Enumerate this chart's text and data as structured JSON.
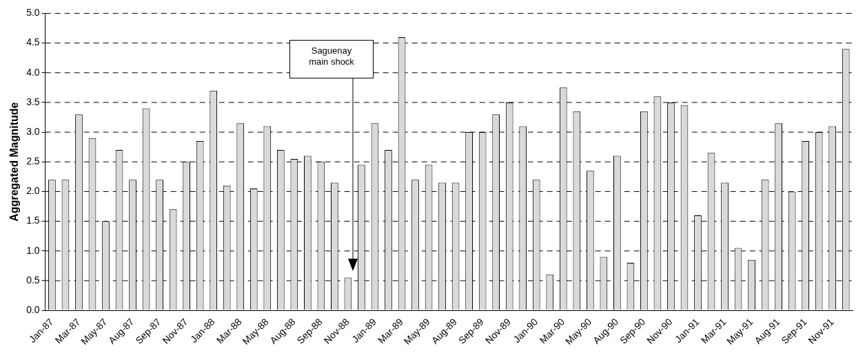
{
  "chart_data": {
    "type": "bar",
    "ylabel": "Aggregated Magnitude",
    "categories": [
      "Jan-87",
      null,
      "Mar-87",
      null,
      "May-87",
      null,
      "Aug-87",
      null,
      "Sep-87",
      null,
      "Nov-87",
      null,
      "Jan-88",
      null,
      "Mar-88",
      null,
      "May-88",
      null,
      "Aug-88",
      null,
      "Sep-88",
      null,
      "Nov-88",
      null,
      "Jan-89",
      null,
      "Mar-89",
      null,
      "May-89",
      null,
      "Aug-89",
      null,
      "Sep-89",
      null,
      "Nov-89",
      null,
      "Jan-90",
      null,
      "Mar-90",
      null,
      "May-90",
      null,
      "Aug-90",
      null,
      "Sep-90",
      null,
      "Nov-90",
      null,
      "Jan-91",
      null,
      "Mar-91",
      null,
      "May-91",
      null,
      "Aug-91",
      null,
      "Sep-91",
      null,
      "Nov-91",
      null
    ],
    "values": [
      2.2,
      2.2,
      3.3,
      2.9,
      1.5,
      2.7,
      2.2,
      3.4,
      2.2,
      1.7,
      2.5,
      2.85,
      3.7,
      2.1,
      3.15,
      2.05,
      3.1,
      2.7,
      2.55,
      2.6,
      2.5,
      2.15,
      0.55,
      2.45,
      3.15,
      2.7,
      4.6,
      2.2,
      2.45,
      2.15,
      2.15,
      3.0,
      3.0,
      3.3,
      3.5,
      3.1,
      2.2,
      0.6,
      3.75,
      3.35,
      2.35,
      0.9,
      2.6,
      0.8,
      3.35,
      3.6,
      3.5,
      3.45,
      1.6,
      2.65,
      2.15,
      1.05,
      0.85,
      2.2,
      3.15,
      2.0,
      2.85,
      3.0,
      3.1,
      4.4
    ],
    "color": "#d9d9d9",
    "ylim": [
      0,
      5
    ],
    "yticks": [
      {
        "value": 0,
        "label": "0.0"
      },
      {
        "value": 0.5,
        "label": "0.5"
      },
      {
        "value": 1,
        "label": "1.0"
      },
      {
        "value": 1.5,
        "label": "1.5"
      },
      {
        "value": 2,
        "label": "2.0"
      },
      {
        "value": 2.5,
        "label": "2.5"
      },
      {
        "value": 3,
        "label": "3.0"
      },
      {
        "value": 3.5,
        "label": "3.5"
      },
      {
        "value": 4,
        "label": "4.0"
      },
      {
        "value": 4.5,
        "label": "4.5"
      },
      {
        "value": 5,
        "label": "5.0"
      }
    ],
    "grid": "y",
    "legend": false,
    "annotations": [
      "Saguenay main shock"
    ]
  }
}
